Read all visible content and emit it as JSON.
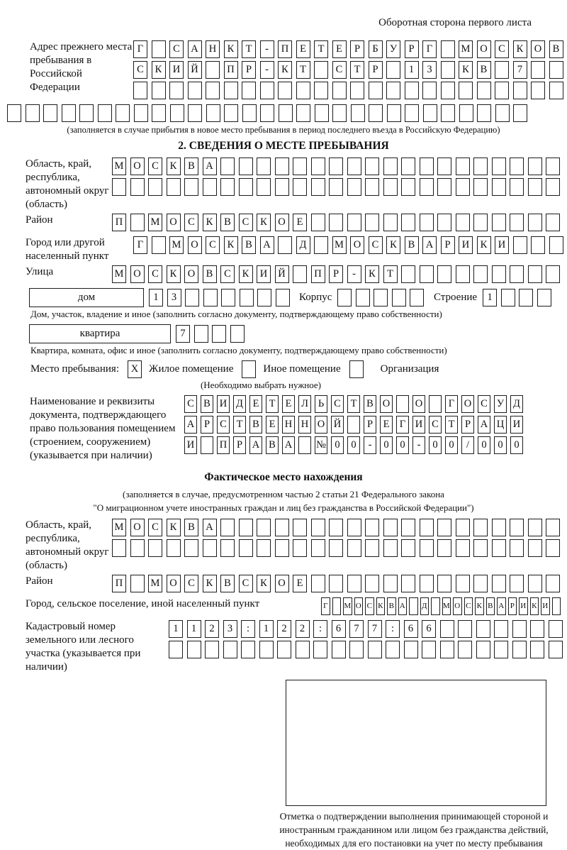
{
  "header": {
    "note": "Оборотная сторона первого листа"
  },
  "prev_address": {
    "label": "Адрес прежнего места пребывания в Российской Федерации",
    "line1": "Г САНКТ-ПЕТЕРБУРГ МОСКОВ",
    "line2": "СКИЙ ПР-КТ СТР 13 КВ 7",
    "line3": "",
    "line4": "",
    "footnote": "(заполняется в случае прибытия в новое место пребывания в период последнего въезда в Российскую Федерацию)"
  },
  "section2": {
    "title": "2. СВЕДЕНИЯ О МЕСТЕ ПРЕБЫВАНИЯ",
    "region": {
      "label": "Область, край, республика, автономный округ (область)",
      "line1": "МОСКВА",
      "line2": ""
    },
    "district": {
      "label": "Район",
      "value": "П МОСКВСКОЕ"
    },
    "city": {
      "label": "Город или другой населенный пункт",
      "value": "Г МОСКВА Д МОСКВАРИКИ"
    },
    "street": {
      "label": "Улица",
      "value": "МОСКОВСКИЙ ПР-КТ"
    },
    "house": {
      "type_label": "дом",
      "value": "13",
      "korpus_label": "Корпус",
      "korpus_value": "",
      "stroenie_label": "Строение",
      "stroenie_value": "1",
      "footnote": "Дом, участок, владение и иное (заполнить согласно документу, подтверждающему право собственности)"
    },
    "apartment": {
      "type_label": "квартира",
      "value": "7",
      "footnote": "Квартира, комната, офис и иное (заполнить согласно документу, подтверждающему право собственности)"
    },
    "stay_type": {
      "label": "Место пребывания:",
      "options": [
        {
          "label": "Жилое помещение",
          "mark": "X"
        },
        {
          "label": "Иное помещение",
          "mark": ""
        },
        {
          "label": "Организация",
          "mark": ""
        }
      ],
      "note": "(Необходимо выбрать нужное)"
    },
    "document": {
      "label": "Наименование и реквизиты документа, подтверждающего право пользования помещением (строением, сооружением) (указывается при наличии)",
      "line1": "СВИДЕТЕЛЬСТВО О ГОСУД",
      "line2": "АРСТВЕННОЙ РЕГИСТРАЦИ",
      "line3": "И ПРАВА №00-00-00/000"
    }
  },
  "actual_location": {
    "title": "Фактическое место нахождения",
    "note1": "(заполняется в случае, предусмотренном частью 2 статьи 21 Федерального закона",
    "note2": "\"О миграционном учете иностранных граждан и лиц без гражданства в Российской Федерации\")",
    "region": {
      "label": "Область, край, республика, автономный округ (область)",
      "line1": "МОСКВА",
      "line2": ""
    },
    "district": {
      "label": "Район",
      "value": "П МОСКВСКОЕ"
    },
    "city": {
      "label": "Город, сельское поселение, иной населенный пункт",
      "value": "Г МОСКВА Д МОСКВАРИКИ"
    },
    "cadastre": {
      "label": "Кадастровый номер земельного или лесного участка (указывается при наличии)",
      "line1": "1123:122:677:66",
      "line2": ""
    }
  },
  "stamp": {
    "caption": "Отметка о подтверждении выполнения принимающей стороной и иностранным гражданином или лицом без гражданства действий, необходимых для его постановки на учет по месту пребывания"
  }
}
